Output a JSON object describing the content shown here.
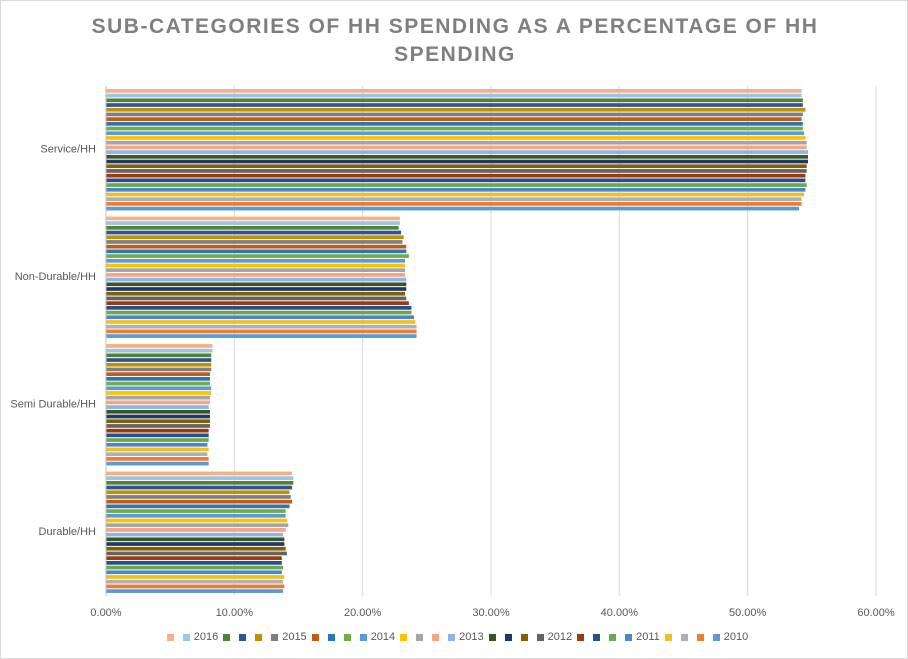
{
  "chart_data": {
    "type": "hbar",
    "title": "SUB-CATEGORIES OF HH SPENDING AS A PERCENTAGE OF HH SPENDING",
    "categories": [
      "Service/HH",
      "Non-Durable/HH",
      "Semi Durable/HH",
      "Durable/HH"
    ],
    "xlim": [
      0,
      60
    ],
    "xticks": [
      {
        "value": 0,
        "label": "0.00%"
      },
      {
        "value": 10,
        "label": "10.00%"
      },
      {
        "value": 20,
        "label": "20.00%"
      },
      {
        "value": 30,
        "label": "30.00%"
      },
      {
        "value": 40,
        "label": "40.00%"
      },
      {
        "value": 50,
        "label": "50.00%"
      },
      {
        "value": 60,
        "label": "60.00%"
      }
    ],
    "grid": true,
    "legend": "bottom",
    "series": [
      {
        "name": null,
        "color": "#f4b183",
        "values": [
          54.2,
          22.9,
          8.3,
          14.5
        ]
      },
      {
        "name": "2016",
        "color": "#9dc3e6",
        "values": [
          54.2,
          22.9,
          8.3,
          14.6
        ]
      },
      {
        "name": null,
        "color": "#548235",
        "values": [
          54.3,
          22.8,
          8.2,
          14.6
        ]
      },
      {
        "name": null,
        "color": "#2f5597",
        "values": [
          54.3,
          23.0,
          8.2,
          14.5
        ]
      },
      {
        "name": null,
        "color": "#bf9000",
        "values": [
          54.5,
          23.2,
          8.2,
          14.3
        ]
      },
      {
        "name": "2015",
        "color": "#7f7f7f",
        "values": [
          54.3,
          23.1,
          8.2,
          14.4
        ]
      },
      {
        "name": null,
        "color": "#c55a11",
        "values": [
          54.2,
          23.4,
          8.1,
          14.5
        ]
      },
      {
        "name": null,
        "color": "#2e75b6",
        "values": [
          54.3,
          23.4,
          8.1,
          14.3
        ]
      },
      {
        "name": null,
        "color": "#70ad47",
        "values": [
          54.3,
          23.6,
          8.1,
          14.0
        ]
      },
      {
        "name": "2014",
        "color": "#5b9bd5",
        "values": [
          54.4,
          23.3,
          8.2,
          14.0
        ]
      },
      {
        "name": null,
        "color": "#ffc000",
        "values": [
          54.5,
          23.3,
          8.2,
          14.1
        ]
      },
      {
        "name": null,
        "color": "#a5a5a5",
        "values": [
          54.6,
          23.3,
          8.1,
          14.2
        ]
      },
      {
        "name": null,
        "color": "#f4a582",
        "values": [
          54.6,
          23.3,
          8.1,
          14.0
        ]
      },
      {
        "name": "2013",
        "color": "#8fb4e3",
        "values": [
          54.7,
          23.4,
          8.0,
          13.8
        ]
      },
      {
        "name": null,
        "color": "#375623",
        "values": [
          54.7,
          23.4,
          8.1,
          13.9
        ]
      },
      {
        "name": null,
        "color": "#1f3864",
        "values": [
          54.7,
          23.4,
          8.1,
          13.9
        ]
      },
      {
        "name": null,
        "color": "#806000",
        "values": [
          54.6,
          23.3,
          8.1,
          14.0
        ]
      },
      {
        "name": "2012",
        "color": "#636363",
        "values": [
          54.6,
          23.4,
          8.1,
          14.1
        ]
      },
      {
        "name": null,
        "color": "#9e3b0e",
        "values": [
          54.5,
          23.6,
          8.0,
          13.7
        ]
      },
      {
        "name": null,
        "color": "#2a4d8f",
        "values": [
          54.5,
          23.8,
          8.0,
          13.7
        ]
      },
      {
        "name": null,
        "color": "#6aa84f",
        "values": [
          54.6,
          23.8,
          8.0,
          13.8
        ]
      },
      {
        "name": "2011",
        "color": "#4a86c8",
        "values": [
          54.5,
          24.0,
          7.9,
          13.7
        ]
      },
      {
        "name": null,
        "color": "#f0c020",
        "values": [
          54.4,
          24.1,
          8.0,
          13.9
        ]
      },
      {
        "name": null,
        "color": "#b0b0b0",
        "values": [
          54.2,
          24.2,
          7.9,
          13.8
        ]
      },
      {
        "name": null,
        "color": "#ed7d31",
        "values": [
          54.2,
          24.2,
          8.0,
          13.9
        ]
      },
      {
        "name": "2010",
        "color": "#5b9bd5",
        "values": [
          54.0,
          24.2,
          8.0,
          13.8
        ]
      }
    ]
  }
}
